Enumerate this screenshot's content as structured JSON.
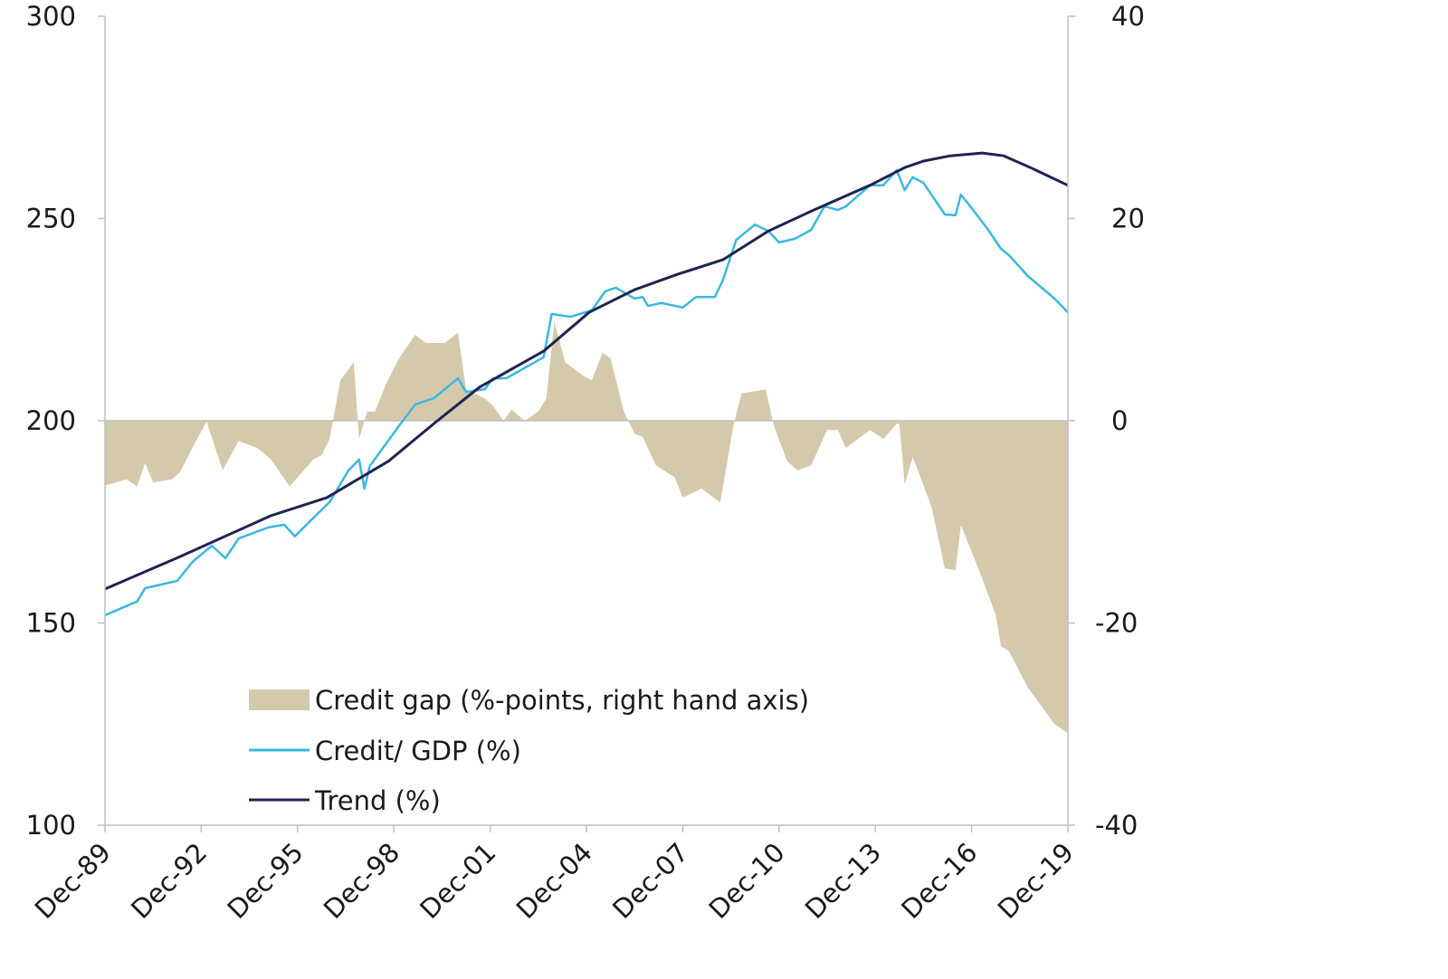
{
  "chart_data": {
    "type": "line+area",
    "title": "",
    "xlabel": "",
    "ylabel": "",
    "y_left": {
      "min": 100,
      "max": 300,
      "ticks": [
        "300",
        "250",
        "200",
        "150",
        "100"
      ]
    },
    "y_right": {
      "min": -40,
      "max": 40,
      "ticks": [
        "40",
        "20",
        "0",
        "-20",
        "-40"
      ]
    },
    "x_range": [
      "1989-12",
      "2019-12"
    ],
    "x_ticks": [
      "Dec-89",
      "Dec-92",
      "Dec-95",
      "Dec-98",
      "Dec-01",
      "Dec-04",
      "Dec-07",
      "Dec-10",
      "Dec-13",
      "Dec-16",
      "Dec-19"
    ],
    "grid": false,
    "legend_position": "bottom-left",
    "series": [
      {
        "name": "Credit gap (%-points, right hand axis)",
        "kind": "area",
        "axis": "right",
        "color": "#d5c9ab",
        "points": [
          [
            "1989-12",
            -6.4
          ],
          [
            "1990-08",
            -5.8
          ],
          [
            "1990-12",
            -6.5
          ],
          [
            "1991-03",
            -4.2
          ],
          [
            "1991-06",
            -6.1
          ],
          [
            "1992-01",
            -5.8
          ],
          [
            "1992-04",
            -5.1
          ],
          [
            "1992-10",
            -2.0
          ],
          [
            "1993-02",
            -0.1
          ],
          [
            "1993-08",
            -4.9
          ],
          [
            "1994-02",
            -2.0
          ],
          [
            "1994-09",
            -2.7
          ],
          [
            "1995-02",
            -3.8
          ],
          [
            "1995-09",
            -6.5
          ],
          [
            "1996-06",
            -3.8
          ],
          [
            "1996-09",
            -3.4
          ],
          [
            "1996-12",
            -1.8
          ],
          [
            "1997-04",
            4.0
          ],
          [
            "1997-09",
            5.8
          ],
          [
            "1997-11",
            -1.8
          ],
          [
            "1998-02",
            0.9
          ],
          [
            "1998-05",
            0.9
          ],
          [
            "1998-09",
            3.6
          ],
          [
            "1999-02",
            6.2
          ],
          [
            "1999-08",
            8.5
          ],
          [
            "1999-12",
            7.7
          ],
          [
            "2000-07",
            7.7
          ],
          [
            "2000-12",
            8.7
          ],
          [
            "2001-03",
            3.1
          ],
          [
            "2001-10",
            2.2
          ],
          [
            "2002-01",
            1.5
          ],
          [
            "2002-05",
            0.0
          ],
          [
            "2002-08",
            1.1
          ],
          [
            "2003-01",
            0.0
          ],
          [
            "2003-06",
            0.9
          ],
          [
            "2003-09",
            2.2
          ],
          [
            "2003-12",
            9.8
          ],
          [
            "2004-04",
            5.8
          ],
          [
            "2004-11",
            4.4
          ],
          [
            "2005-02",
            4.0
          ],
          [
            "2005-06",
            6.7
          ],
          [
            "2005-09",
            6.2
          ],
          [
            "2006-02",
            0.9
          ],
          [
            "2006-06",
            -1.3
          ],
          [
            "2006-09",
            -1.6
          ],
          [
            "2007-02",
            -4.4
          ],
          [
            "2007-09",
            -5.6
          ],
          [
            "2007-12",
            -7.6
          ],
          [
            "2008-07",
            -6.7
          ],
          [
            "2009-02",
            -8.1
          ],
          [
            "2009-07",
            -0.4
          ],
          [
            "2009-10",
            2.7
          ],
          [
            "2010-07",
            3.1
          ],
          [
            "2010-10",
            -0.4
          ],
          [
            "2011-03",
            -4.0
          ],
          [
            "2011-07",
            -4.9
          ],
          [
            "2011-12",
            -4.4
          ],
          [
            "2012-06",
            -0.9
          ],
          [
            "2012-10",
            -0.9
          ],
          [
            "2013-01",
            -2.7
          ],
          [
            "2013-10",
            -0.9
          ],
          [
            "2014-03",
            -1.8
          ],
          [
            "2014-08",
            -0.3
          ],
          [
            "2014-09",
            -0.3
          ],
          [
            "2014-11",
            -6.3
          ],
          [
            "2015-02",
            -3.6
          ],
          [
            "2015-09",
            -8.5
          ],
          [
            "2016-02",
            -14.6
          ],
          [
            "2016-06",
            -14.8
          ],
          [
            "2016-08",
            -10.3
          ],
          [
            "2017-04",
            -15.6
          ],
          [
            "2017-09",
            -19.2
          ],
          [
            "2017-11",
            -22.3
          ],
          [
            "2018-02",
            -22.8
          ],
          [
            "2018-09",
            -26.4
          ],
          [
            "2019-07",
            -30.0
          ],
          [
            "2019-12",
            -30.9
          ]
        ]
      },
      {
        "name": "Credit/ GDP (%)",
        "kind": "line",
        "axis": "left",
        "color": "#3ab8e0",
        "points": [
          [
            "1989-12",
            151.9
          ],
          [
            "1990-12",
            155.3
          ],
          [
            "1991-03",
            158.6
          ],
          [
            "1992-03",
            160.4
          ],
          [
            "1992-09",
            165.3
          ],
          [
            "1993-04",
            169.1
          ],
          [
            "1993-09",
            166.0
          ],
          [
            "1994-02",
            170.9
          ],
          [
            "1995-01",
            173.6
          ],
          [
            "1995-07",
            174.3
          ],
          [
            "1995-11",
            171.4
          ],
          [
            "1996-05",
            175.4
          ],
          [
            "1996-12",
            179.9
          ],
          [
            "1997-07",
            187.7
          ],
          [
            "1997-11",
            190.4
          ],
          [
            "1998-01",
            183.2
          ],
          [
            "1998-03",
            188.8
          ],
          [
            "1999-02",
            198.8
          ],
          [
            "1999-08",
            204.0
          ],
          [
            "2000-03",
            205.6
          ],
          [
            "2000-12",
            210.5
          ],
          [
            "2001-03",
            207.1
          ],
          [
            "2001-10",
            207.8
          ],
          [
            "2002-01",
            210.5
          ],
          [
            "2002-06",
            210.5
          ],
          [
            "2003-08",
            215.7
          ],
          [
            "2003-11",
            226.4
          ],
          [
            "2004-06",
            225.7
          ],
          [
            "2005-02",
            227.3
          ],
          [
            "2005-07",
            232.0
          ],
          [
            "2005-11",
            232.9
          ],
          [
            "2006-06",
            230.2
          ],
          [
            "2006-09",
            230.6
          ],
          [
            "2006-11",
            228.4
          ],
          [
            "2007-04",
            229.1
          ],
          [
            "2007-12",
            228.0
          ],
          [
            "2008-05",
            230.6
          ],
          [
            "2008-12",
            230.6
          ],
          [
            "2009-03",
            234.7
          ],
          [
            "2009-08",
            244.7
          ],
          [
            "2010-03",
            248.5
          ],
          [
            "2010-08",
            246.9
          ],
          [
            "2010-12",
            244.1
          ],
          [
            "2011-06",
            245.0
          ],
          [
            "2011-12",
            247.2
          ],
          [
            "2012-05",
            253.0
          ],
          [
            "2012-10",
            252.1
          ],
          [
            "2013-01",
            253.0
          ],
          [
            "2013-10",
            258.2
          ],
          [
            "2014-03",
            258.2
          ],
          [
            "2014-08",
            262.0
          ],
          [
            "2014-11",
            257.0
          ],
          [
            "2015-02",
            260.2
          ],
          [
            "2015-06",
            258.8
          ],
          [
            "2016-02",
            251.0
          ],
          [
            "2016-06",
            250.8
          ],
          [
            "2016-08",
            255.9
          ],
          [
            "2016-12",
            252.6
          ],
          [
            "2017-06",
            247.4
          ],
          [
            "2017-11",
            242.5
          ],
          [
            "2018-02",
            240.9
          ],
          [
            "2018-09",
            235.8
          ],
          [
            "2019-07",
            230.2
          ],
          [
            "2019-12",
            226.8
          ]
        ]
      },
      {
        "name": "Trend (%)",
        "kind": "line",
        "axis": "left",
        "color": "#1e2451",
        "points": [
          [
            "1989-12",
            158.4
          ],
          [
            "1992-04",
            166.4
          ],
          [
            "1995-02",
            176.5
          ],
          [
            "1996-11",
            181.0
          ],
          [
            "1998-10",
            190.0
          ],
          [
            "2000-03",
            199.3
          ],
          [
            "2001-08",
            208.3
          ],
          [
            "2003-08",
            217.2
          ],
          [
            "2005-01",
            226.8
          ],
          [
            "2006-06",
            232.4
          ],
          [
            "2007-10",
            236.2
          ],
          [
            "2009-03",
            239.8
          ],
          [
            "2010-08",
            246.9
          ],
          [
            "2012-01",
            252.1
          ],
          [
            "2013-10",
            258.2
          ],
          [
            "2014-11",
            262.6
          ],
          [
            "2015-06",
            264.2
          ],
          [
            "2016-04",
            265.5
          ],
          [
            "2017-04",
            266.2
          ],
          [
            "2017-12",
            265.5
          ],
          [
            "2018-10",
            262.6
          ],
          [
            "2019-12",
            258.2
          ]
        ]
      }
    ]
  }
}
